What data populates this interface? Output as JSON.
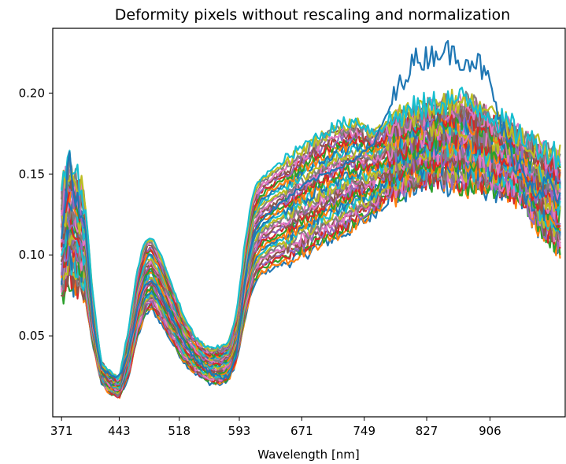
{
  "chart_data": {
    "type": "line",
    "title": "Deformity pixels without rescaling and normalization",
    "xlabel": "Wavelength [nm]",
    "ylabel": "",
    "x_ticks": [
      371,
      443,
      518,
      593,
      671,
      749,
      827,
      906
    ],
    "y_ticks": [
      0.05,
      0.1,
      0.15,
      0.2
    ],
    "y_tick_labels": [
      "0.05",
      "0.10",
      "0.15",
      "0.20"
    ],
    "xlim": [
      360,
      1000
    ],
    "ylim": [
      0.0,
      0.24
    ],
    "grid": false,
    "legend": "none",
    "series_count": 40,
    "palette": [
      "#1f77b4",
      "#ff7f0e",
      "#2ca02c",
      "#d62728",
      "#9467bd",
      "#8c564b",
      "#e377c2",
      "#7f7f7f",
      "#bcbd22",
      "#17becf"
    ],
    "envelope": {
      "wavelengths": [
        371,
        380,
        390,
        400,
        410,
        420,
        430,
        443,
        455,
        465,
        475,
        483,
        495,
        510,
        525,
        540,
        555,
        570,
        580,
        590,
        600,
        610,
        620,
        640,
        660,
        680,
        700,
        720,
        740,
        760,
        780,
        800,
        827,
        850,
        870,
        890,
        906,
        920,
        935,
        950,
        965,
        980,
        995
      ],
      "low": [
        0.075,
        0.085,
        0.08,
        0.075,
        0.045,
        0.022,
        0.015,
        0.012,
        0.025,
        0.048,
        0.062,
        0.067,
        0.058,
        0.045,
        0.033,
        0.026,
        0.021,
        0.02,
        0.023,
        0.035,
        0.06,
        0.08,
        0.088,
        0.093,
        0.097,
        0.102,
        0.108,
        0.112,
        0.118,
        0.125,
        0.135,
        0.14,
        0.145,
        0.145,
        0.143,
        0.142,
        0.142,
        0.14,
        0.138,
        0.13,
        0.12,
        0.11,
        0.105
      ],
      "high": [
        0.14,
        0.155,
        0.145,
        0.135,
        0.075,
        0.035,
        0.028,
        0.024,
        0.055,
        0.09,
        0.108,
        0.111,
        0.1,
        0.08,
        0.06,
        0.048,
        0.042,
        0.043,
        0.047,
        0.065,
        0.108,
        0.138,
        0.148,
        0.155,
        0.162,
        0.17,
        0.176,
        0.181,
        0.183,
        0.176,
        0.182,
        0.188,
        0.192,
        0.195,
        0.196,
        0.192,
        0.188,
        0.182,
        0.178,
        0.172,
        0.168,
        0.165,
        0.16
      ],
      "outlier_series": {
        "wavelengths": [
          371,
          380,
          390,
          400,
          410,
          420,
          430,
          443,
          455,
          465,
          475,
          483,
          495,
          510,
          525,
          540,
          555,
          570,
          580,
          590,
          600,
          610,
          620,
          640,
          660,
          680,
          700,
          720,
          740,
          760,
          780,
          800,
          812,
          827,
          845,
          860,
          875,
          890,
          906,
          920,
          935,
          950,
          965,
          980,
          995
        ],
        "values": [
          0.11,
          0.16,
          0.135,
          0.12,
          0.06,
          0.03,
          0.027,
          0.025,
          0.04,
          0.065,
          0.082,
          0.085,
          0.076,
          0.06,
          0.045,
          0.035,
          0.028,
          0.024,
          0.025,
          0.04,
          0.085,
          0.112,
          0.122,
          0.13,
          0.138,
          0.145,
          0.15,
          0.155,
          0.16,
          0.168,
          0.19,
          0.212,
          0.22,
          0.222,
          0.227,
          0.224,
          0.221,
          0.22,
          0.205,
          0.18,
          0.16,
          0.15,
          0.14,
          0.145,
          0.13
        ]
      }
    }
  }
}
